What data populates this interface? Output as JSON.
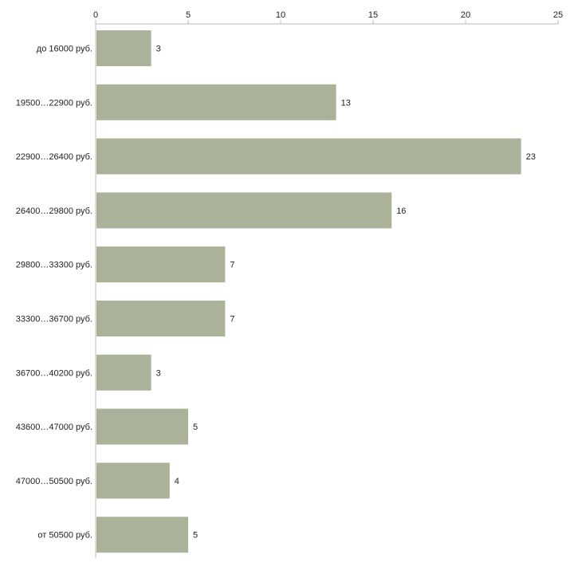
{
  "chart_data": {
    "type": "bar",
    "orientation": "horizontal",
    "categories": [
      "до 16000 руб.",
      "19500…22900 руб.",
      "22900…26400 руб.",
      "26400…29800 руб.",
      "29800…33300 руб.",
      "33300…36700 руб.",
      "36700…40200 руб.",
      "43600…47000 руб.",
      "47000…50500 руб.",
      "от 50500 руб."
    ],
    "values": [
      3,
      13,
      23,
      16,
      7,
      7,
      3,
      5,
      4,
      5
    ],
    "xlim": [
      0,
      25
    ],
    "x_ticks": [
      0,
      5,
      10,
      15,
      20,
      25
    ],
    "axis_position": "top",
    "grid": false,
    "legend": "none",
    "colors": {
      "bar": "#abb29a",
      "axis": "#bbbbbb",
      "text": "#222222"
    }
  }
}
